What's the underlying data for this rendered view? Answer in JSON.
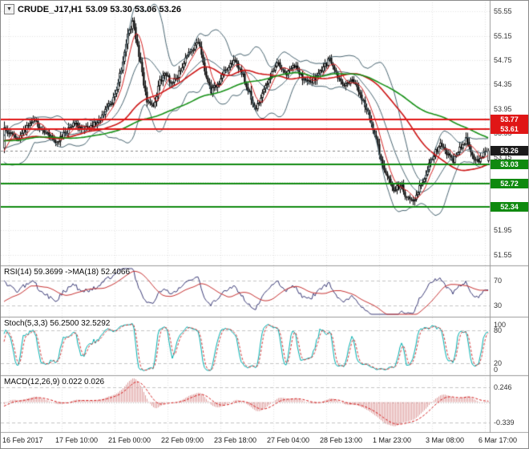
{
  "chart_data": {
    "type": "candlestick",
    "symbol": "CRUDE_J17,H1",
    "timeframe": "H1",
    "title": "CRUDE_J17,H1 53.09 53.30 53.06 53.26",
    "ohlc_text": "53.09 53.30 53.06 53.26",
    "last_bar": {
      "open": 53.09,
      "high": 53.3,
      "low": 53.06,
      "close": 53.26
    },
    "price_axis": {
      "min": 51.4,
      "max": 55.7,
      "ticks": [
        "55.55",
        "55.15",
        "54.75",
        "54.35",
        "53.95",
        "53.55",
        "53.15",
        "52.75",
        "52.35",
        "51.95",
        "51.55"
      ]
    },
    "time_axis": [
      "16 Feb 2017",
      "17 Feb 10:00",
      "21 Feb 00:00",
      "22 Feb 09:00",
      "23 Feb 18:00",
      "27 Feb 04:00",
      "28 Feb 13:00",
      "1 Mar 23:00",
      "3 Mar 08:00",
      "6 Mar 17:00"
    ],
    "levels": [
      {
        "label": "53.77",
        "price": 53.77,
        "role": "resistance",
        "color": "#e01616"
      },
      {
        "label": "53.61",
        "price": 53.61,
        "role": "resistance",
        "color": "#e01616"
      },
      {
        "label": "53.26",
        "price": 53.26,
        "role": "current-price",
        "color": "#1a1a1a"
      },
      {
        "label": "53.03",
        "price": 53.03,
        "role": "support",
        "color": "#0f8a0f"
      },
      {
        "label": "52.72",
        "price": 52.72,
        "role": "support",
        "color": "#0f8a0f"
      },
      {
        "label": "52.34",
        "price": 52.34,
        "role": "support",
        "color": "#0f8a0f"
      }
    ],
    "bar_count": 303,
    "price_keypoints": [
      [
        0,
        53.6
      ],
      [
        8,
        53.45
      ],
      [
        18,
        53.75
      ],
      [
        26,
        53.55
      ],
      [
        33,
        53.4
      ],
      [
        43,
        53.7
      ],
      [
        53,
        53.6
      ],
      [
        61,
        53.85
      ],
      [
        68,
        54.1
      ],
      [
        73,
        54.6
      ],
      [
        77,
        55.15
      ],
      [
        80,
        55.4
      ],
      [
        84,
        54.85
      ],
      [
        89,
        54.05
      ],
      [
        93,
        53.95
      ],
      [
        97,
        54.4
      ],
      [
        100,
        54.55
      ],
      [
        105,
        54.35
      ],
      [
        110,
        54.6
      ],
      [
        116,
        54.9
      ],
      [
        121,
        55.05
      ],
      [
        125,
        54.55
      ],
      [
        129,
        54.25
      ],
      [
        134,
        54.35
      ],
      [
        138,
        54.6
      ],
      [
        143,
        54.75
      ],
      [
        148,
        54.55
      ],
      [
        153,
        54.2
      ],
      [
        157,
        53.95
      ],
      [
        162,
        54.25
      ],
      [
        166,
        54.5
      ],
      [
        171,
        54.7
      ],
      [
        176,
        54.55
      ],
      [
        181,
        54.65
      ],
      [
        186,
        54.45
      ],
      [
        191,
        54.35
      ],
      [
        195,
        54.5
      ],
      [
        199,
        54.6
      ],
      [
        203,
        54.8
      ],
      [
        207,
        54.5
      ],
      [
        212,
        54.35
      ],
      [
        217,
        54.45
      ],
      [
        222,
        54.2
      ],
      [
        226,
        53.95
      ],
      [
        231,
        53.55
      ],
      [
        235,
        53.1
      ],
      [
        239,
        52.8
      ],
      [
        243,
        52.6
      ],
      [
        247,
        52.7
      ],
      [
        251,
        52.5
      ],
      [
        255,
        52.45
      ],
      [
        259,
        52.65
      ],
      [
        264,
        52.95
      ],
      [
        268,
        53.2
      ],
      [
        272,
        53.35
      ],
      [
        276,
        53.2
      ],
      [
        280,
        53.1
      ],
      [
        284,
        53.3
      ],
      [
        288,
        53.45
      ],
      [
        292,
        53.15
      ],
      [
        296,
        53.1
      ],
      [
        299,
        53.2
      ],
      [
        302,
        53.26
      ]
    ],
    "overlays": {
      "bollinger": {
        "period": 20,
        "deviation": 2,
        "color": "#4a6672"
      },
      "ma_fast": {
        "period": 8,
        "color": "#d42020"
      },
      "ma_slow": {
        "period": 55,
        "color": "#cc1414"
      },
      "ma_long": {
        "period": 110,
        "color": "#159015"
      }
    },
    "panels": {
      "rsi": {
        "label": "RSI(14) 59.3699 ->MA(18) 52.4066",
        "axis_ticks": [
          "70",
          "30"
        ],
        "tick_values": [
          70,
          30
        ],
        "levels": [
          70,
          30
        ],
        "range": [
          15,
          90
        ],
        "color": "#3c3c78",
        "ma_color": "#c83232"
      },
      "stoch": {
        "label": "Stoch(5,3,3) 56.2500 32.5292",
        "axis_ticks": [
          "100",
          "80",
          "20",
          "0"
        ],
        "tick_values": [
          100,
          80,
          20,
          0
        ],
        "levels": [
          80,
          20
        ],
        "range": [
          0,
          100
        ],
        "color": "#00b0b0",
        "signal_color": "#d43c3c"
      },
      "macd": {
        "label": "MACD(12,26,9) 0.022 0.026",
        "axis_ticks": [
          "0.246",
          "-0.339"
        ],
        "tick_values": [
          0.246,
          -0.339
        ],
        "range": [
          -0.48,
          0.4
        ],
        "hist_color": "#de9b9b",
        "signal_color": "#d42020"
      }
    },
    "colors": {
      "background": "#ffffff",
      "grid": "#e4e4e4",
      "axis_text": "#333333",
      "candle_up": "#ffffff",
      "candle_down": "#000000",
      "candle_outline": "#000000",
      "divider": "#9a9a9a",
      "badge_text": "#ffffff",
      "current_price_line": "#888888"
    }
  }
}
